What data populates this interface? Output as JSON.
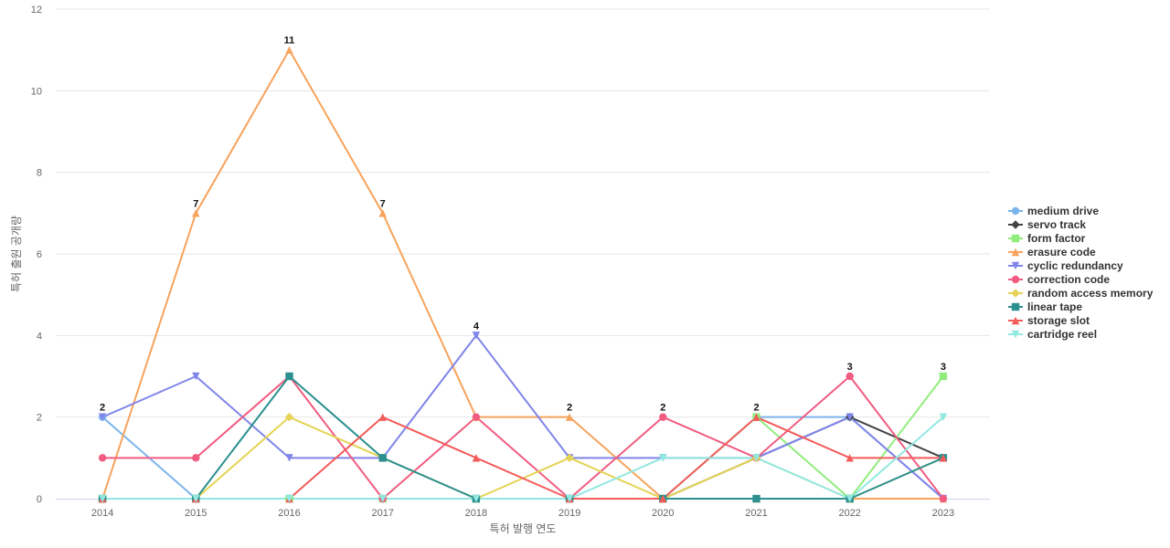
{
  "chart_data": {
    "type": "line",
    "xlabel": "특허 발행 연도",
    "ylabel": "특허 출원 공개량",
    "categories": [
      "2014",
      "2015",
      "2016",
      "2017",
      "2018",
      "2019",
      "2020",
      "2021",
      "2022",
      "2023"
    ],
    "ylim": [
      0,
      12
    ],
    "yticks": [
      0,
      2,
      4,
      6,
      8,
      10,
      12
    ],
    "grid": true,
    "legend_position": "right",
    "data_labels_for": "max value per year",
    "series": [
      {
        "name": "medium drive",
        "color": "#7cb5ec",
        "marker": "circle",
        "values": [
          2,
          0,
          0,
          0,
          0,
          0,
          0,
          2,
          2,
          0
        ]
      },
      {
        "name": "servo track",
        "color": "#434348",
        "marker": "diamond",
        "values": [
          0,
          0,
          0,
          0,
          0,
          0,
          0,
          1,
          2,
          1
        ]
      },
      {
        "name": "form factor",
        "color": "#90ed7d",
        "marker": "square",
        "values": [
          0,
          0,
          0,
          0,
          0,
          0,
          0,
          2,
          0,
          3
        ]
      },
      {
        "name": "erasure code",
        "color": "#f7a35c",
        "marker": "triangle",
        "values": [
          0,
          7,
          11,
          7,
          2,
          2,
          0,
          0,
          0,
          0
        ]
      },
      {
        "name": "cyclic redundancy",
        "color": "#8085e9",
        "marker": "triangle-down",
        "values": [
          2,
          3,
          1,
          1,
          4,
          1,
          1,
          1,
          2,
          0
        ]
      },
      {
        "name": "correction code",
        "color": "#f15c80",
        "marker": "circle",
        "values": [
          1,
          1,
          3,
          0,
          2,
          0,
          2,
          1,
          3,
          0
        ]
      },
      {
        "name": "random access memory",
        "color": "#e4d354",
        "marker": "diamond",
        "values": [
          0,
          0,
          2,
          1,
          0,
          1,
          0,
          1,
          0,
          1
        ]
      },
      {
        "name": "linear tape",
        "color": "#2b908f",
        "marker": "square",
        "values": [
          0,
          0,
          3,
          1,
          0,
          0,
          0,
          0,
          0,
          1
        ]
      },
      {
        "name": "storage slot",
        "color": "#f45b5b",
        "marker": "triangle",
        "values": [
          0,
          0,
          0,
          2,
          1,
          0,
          0,
          2,
          1,
          1
        ]
      },
      {
        "name": "cartridge reel",
        "color": "#91e8e1",
        "marker": "triangle-down",
        "values": [
          0,
          0,
          0,
          0,
          0,
          0,
          1,
          1,
          0,
          2
        ]
      }
    ]
  }
}
